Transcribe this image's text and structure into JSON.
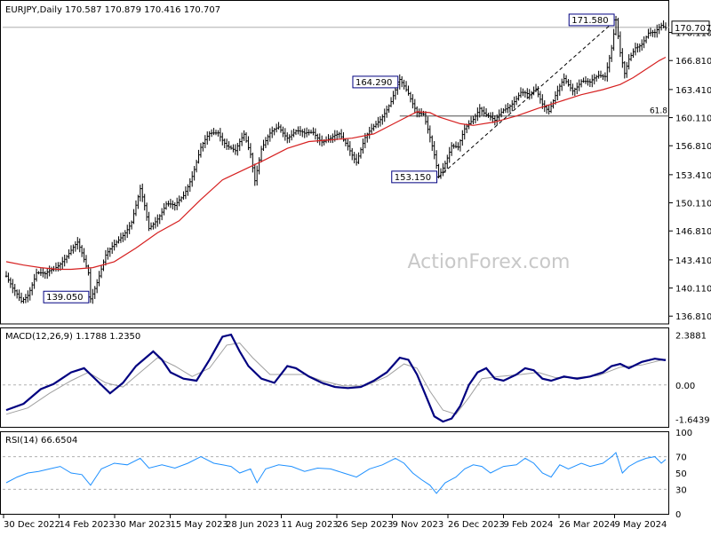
{
  "header": {
    "symbol": "EURJPY,Daily",
    "ohlc": "170.587 170.879 170.416 170.707"
  },
  "watermark": "ActionForex.com",
  "colors": {
    "candle": "#000000",
    "ma": "#d62020",
    "macd_line": "#000080",
    "signal_line": "#a0a0a0",
    "rsi_line": "#1e90ff",
    "fib_line": "#4d4d4d",
    "label_border": "#000080",
    "grid_dash": "#b0b0b0"
  },
  "chart_data": [
    {
      "type": "candlestick",
      "name": "price",
      "ylim": [
        136.0,
        173.5
      ],
      "y_ticks": [
        "170.707",
        "170.110",
        "166.810",
        "163.410",
        "160.110",
        "156.810",
        "153.410",
        "150.110",
        "146.810",
        "143.410",
        "140.110",
        "136.810"
      ],
      "last_price_label": "170.707",
      "x_ticks": [
        "30 Dec 2022",
        "14 Feb 2023",
        "30 Mar 2023",
        "15 May 2023",
        "28 Jun 2023",
        "11 Aug 2023",
        "26 Sep 2023",
        "9 Nov 2023",
        "26 Dec 2023",
        "9 Feb 2024",
        "26 Mar 2024",
        "9 May 2024"
      ],
      "price_path": [
        [
          0,
          141.5
        ],
        [
          3,
          139.8
        ],
        [
          7,
          138.5
        ],
        [
          10,
          139.5
        ],
        [
          14,
          142.0
        ],
        [
          18,
          141.5
        ],
        [
          22,
          142.3
        ],
        [
          26,
          143.5
        ],
        [
          30,
          144.5
        ],
        [
          33,
          145.2
        ],
        [
          35,
          144.0
        ],
        [
          38,
          142.0
        ],
        [
          39,
          139.05
        ],
        [
          42,
          141.0
        ],
        [
          46,
          143.8
        ],
        [
          50,
          145.0
        ],
        [
          54,
          146.5
        ],
        [
          58,
          148.0
        ],
        [
          62,
          151.5
        ],
        [
          64,
          149.5
        ],
        [
          66,
          147.0
        ],
        [
          70,
          148.5
        ],
        [
          74,
          150.0
        ],
        [
          78,
          149.5
        ],
        [
          82,
          151.0
        ],
        [
          86,
          153.5
        ],
        [
          90,
          156.5
        ],
        [
          94,
          158.0
        ],
        [
          98,
          158.5
        ],
        [
          102,
          157.0
        ],
        [
          106,
          156.0
        ],
        [
          110,
          158.0
        ],
        [
          113,
          156.0
        ],
        [
          115,
          153.0
        ],
        [
          118,
          156.5
        ],
        [
          122,
          158.0
        ],
        [
          126,
          159.0
        ],
        [
          130,
          158.0
        ],
        [
          134,
          158.5
        ],
        [
          138,
          158.0
        ],
        [
          142,
          158.5
        ],
        [
          146,
          157.5
        ],
        [
          150,
          157.5
        ],
        [
          154,
          158.0
        ],
        [
          158,
          157.0
        ],
        [
          162,
          155.0
        ],
        [
          166,
          157.5
        ],
        [
          170,
          159.0
        ],
        [
          174,
          160.5
        ],
        [
          178,
          162.0
        ],
        [
          182,
          164.29
        ],
        [
          186,
          163.0
        ],
        [
          190,
          161.0
        ],
        [
          193,
          160.5
        ],
        [
          196,
          157.5
        ],
        [
          198,
          155.5
        ],
        [
          200,
          153.15
        ],
        [
          203,
          155.0
        ],
        [
          206,
          157.0
        ],
        [
          209,
          156.5
        ],
        [
          212,
          158.5
        ],
        [
          216,
          160.0
        ],
        [
          219,
          161.5
        ],
        [
          222,
          160.5
        ],
        [
          226,
          159.5
        ],
        [
          230,
          161.0
        ],
        [
          234,
          162.0
        ],
        [
          238,
          163.0
        ],
        [
          242,
          162.5
        ],
        [
          245,
          163.5
        ],
        [
          248,
          162.0
        ],
        [
          251,
          161.0
        ],
        [
          254,
          162.5
        ],
        [
          258,
          164.5
        ],
        [
          262,
          163.5
        ],
        [
          266,
          164.5
        ],
        [
          270,
          164.0
        ],
        [
          274,
          165.0
        ],
        [
          277,
          165.2
        ],
        [
          280,
          168.5
        ],
        [
          282,
          171.58
        ],
        [
          284,
          167.5
        ],
        [
          286,
          165.0
        ],
        [
          288,
          166.8
        ],
        [
          291,
          168.5
        ],
        [
          294,
          169.0
        ],
        [
          297,
          170.0
        ],
        [
          300,
          169.8
        ],
        [
          303,
          170.8
        ],
        [
          305,
          170.707
        ]
      ],
      "ma_path": [
        [
          0,
          143.2
        ],
        [
          8,
          142.8
        ],
        [
          16,
          142.5
        ],
        [
          24,
          142.3
        ],
        [
          30,
          142.3
        ],
        [
          40,
          142.5
        ],
        [
          50,
          143.2
        ],
        [
          60,
          144.8
        ],
        [
          70,
          146.6
        ],
        [
          80,
          148.0
        ],
        [
          90,
          150.5
        ],
        [
          100,
          152.8
        ],
        [
          110,
          154.0
        ],
        [
          120,
          155.2
        ],
        [
          130,
          156.5
        ],
        [
          140,
          157.3
        ],
        [
          150,
          157.5
        ],
        [
          160,
          157.7
        ],
        [
          170,
          158.2
        ],
        [
          180,
          159.5
        ],
        [
          190,
          160.8
        ],
        [
          196,
          160.7
        ],
        [
          200,
          160.2
        ],
        [
          210,
          159.4
        ],
        [
          216,
          159.2
        ],
        [
          226,
          159.6
        ],
        [
          236,
          160.3
        ],
        [
          246,
          161.2
        ],
        [
          256,
          162.0
        ],
        [
          266,
          162.8
        ],
        [
          276,
          163.4
        ],
        [
          284,
          164.0
        ],
        [
          290,
          164.8
        ],
        [
          296,
          165.8
        ],
        [
          302,
          166.8
        ],
        [
          305,
          167.2
        ]
      ],
      "annotations": [
        {
          "label": "139.050",
          "value": 139.05,
          "bar": 39
        },
        {
          "label": "164.290",
          "value": 164.29,
          "bar": 182
        },
        {
          "label": "153.150",
          "value": 153.15,
          "bar": 200
        },
        {
          "label": "171.580",
          "value": 171.58,
          "bar": 282
        }
      ],
      "fibonacci": {
        "label": "61.8",
        "value": 160.3
      },
      "trend_line": {
        "from": [
          200,
          153.15
        ],
        "to": [
          282,
          171.58
        ]
      }
    },
    {
      "type": "line",
      "name": "MACD(12,26,9)",
      "title": "MACD(12,26,9) 1.1788 1.2350",
      "ylim": [
        -2.0,
        2.7
      ],
      "y_ticks": [
        "2.3881",
        "0.00",
        "-1.6439"
      ],
      "zero_line": 0.0,
      "macd_path": [
        [
          0,
          -1.2
        ],
        [
          8,
          -0.9
        ],
        [
          16,
          -0.2
        ],
        [
          22,
          0.05
        ],
        [
          30,
          0.6
        ],
        [
          36,
          0.8
        ],
        [
          42,
          0.2
        ],
        [
          48,
          -0.4
        ],
        [
          54,
          0.1
        ],
        [
          60,
          0.9
        ],
        [
          68,
          1.6
        ],
        [
          72,
          1.2
        ],
        [
          76,
          0.6
        ],
        [
          82,
          0.3
        ],
        [
          88,
          0.2
        ],
        [
          94,
          1.2
        ],
        [
          100,
          2.3
        ],
        [
          104,
          2.4
        ],
        [
          108,
          1.6
        ],
        [
          112,
          0.9
        ],
        [
          118,
          0.3
        ],
        [
          124,
          0.1
        ],
        [
          130,
          0.9
        ],
        [
          134,
          0.8
        ],
        [
          140,
          0.4
        ],
        [
          146,
          0.1
        ],
        [
          152,
          -0.1
        ],
        [
          158,
          -0.15
        ],
        [
          164,
          -0.1
        ],
        [
          170,
          0.2
        ],
        [
          176,
          0.6
        ],
        [
          182,
          1.3
        ],
        [
          186,
          1.2
        ],
        [
          190,
          0.5
        ],
        [
          194,
          -0.5
        ],
        [
          198,
          -1.5
        ],
        [
          202,
          -1.75
        ],
        [
          206,
          -1.6
        ],
        [
          210,
          -1.0
        ],
        [
          214,
          0.0
        ],
        [
          218,
          0.6
        ],
        [
          222,
          0.8
        ],
        [
          226,
          0.3
        ],
        [
          230,
          0.2
        ],
        [
          236,
          0.5
        ],
        [
          240,
          0.8
        ],
        [
          244,
          0.7
        ],
        [
          248,
          0.3
        ],
        [
          252,
          0.2
        ],
        [
          258,
          0.4
        ],
        [
          264,
          0.3
        ],
        [
          270,
          0.4
        ],
        [
          276,
          0.6
        ],
        [
          280,
          0.9
        ],
        [
          284,
          1.0
        ],
        [
          288,
          0.8
        ],
        [
          294,
          1.1
        ],
        [
          300,
          1.25
        ],
        [
          305,
          1.18
        ]
      ],
      "signal_path": [
        [
          0,
          -1.4
        ],
        [
          10,
          -1.1
        ],
        [
          20,
          -0.4
        ],
        [
          30,
          0.2
        ],
        [
          38,
          0.6
        ],
        [
          46,
          0.1
        ],
        [
          54,
          -0.1
        ],
        [
          62,
          0.6
        ],
        [
          70,
          1.3
        ],
        [
          78,
          0.9
        ],
        [
          86,
          0.4
        ],
        [
          94,
          0.8
        ],
        [
          102,
          1.9
        ],
        [
          108,
          2.0
        ],
        [
          114,
          1.3
        ],
        [
          122,
          0.5
        ],
        [
          130,
          0.5
        ],
        [
          138,
          0.5
        ],
        [
          146,
          0.2
        ],
        [
          156,
          -0.05
        ],
        [
          166,
          -0.05
        ],
        [
          176,
          0.4
        ],
        [
          184,
          1.0
        ],
        [
          190,
          0.8
        ],
        [
          196,
          -0.3
        ],
        [
          202,
          -1.2
        ],
        [
          208,
          -1.4
        ],
        [
          214,
          -0.6
        ],
        [
          220,
          0.3
        ],
        [
          228,
          0.4
        ],
        [
          238,
          0.5
        ],
        [
          246,
          0.6
        ],
        [
          254,
          0.35
        ],
        [
          264,
          0.35
        ],
        [
          274,
          0.45
        ],
        [
          284,
          0.85
        ],
        [
          294,
          0.95
        ],
        [
          305,
          1.235
        ]
      ]
    },
    {
      "type": "line",
      "name": "RSI(14)",
      "title": "RSI(14) 66.6504",
      "ylim": [
        0,
        100
      ],
      "y_ticks": [
        "100",
        "70",
        "50",
        "30",
        "0"
      ],
      "levels": [
        70,
        30
      ],
      "rsi_path": [
        [
          0,
          38
        ],
        [
          5,
          45
        ],
        [
          10,
          50
        ],
        [
          15,
          52
        ],
        [
          20,
          55
        ],
        [
          25,
          58
        ],
        [
          30,
          50
        ],
        [
          35,
          48
        ],
        [
          39,
          35
        ],
        [
          44,
          55
        ],
        [
          50,
          62
        ],
        [
          56,
          60
        ],
        [
          62,
          68
        ],
        [
          66,
          56
        ],
        [
          72,
          60
        ],
        [
          78,
          56
        ],
        [
          84,
          62
        ],
        [
          90,
          70
        ],
        [
          96,
          62
        ],
        [
          100,
          60
        ],
        [
          104,
          58
        ],
        [
          108,
          50
        ],
        [
          113,
          55
        ],
        [
          116,
          38
        ],
        [
          120,
          55
        ],
        [
          126,
          60
        ],
        [
          132,
          58
        ],
        [
          138,
          52
        ],
        [
          144,
          56
        ],
        [
          150,
          55
        ],
        [
          156,
          50
        ],
        [
          162,
          45
        ],
        [
          168,
          55
        ],
        [
          174,
          60
        ],
        [
          180,
          68
        ],
        [
          184,
          62
        ],
        [
          188,
          50
        ],
        [
          192,
          42
        ],
        [
          196,
          35
        ],
        [
          199,
          25
        ],
        [
          203,
          38
        ],
        [
          208,
          45
        ],
        [
          212,
          55
        ],
        [
          216,
          60
        ],
        [
          220,
          58
        ],
        [
          224,
          50
        ],
        [
          230,
          58
        ],
        [
          236,
          60
        ],
        [
          240,
          68
        ],
        [
          244,
          62
        ],
        [
          248,
          50
        ],
        [
          252,
          45
        ],
        [
          256,
          60
        ],
        [
          260,
          55
        ],
        [
          266,
          62
        ],
        [
          270,
          58
        ],
        [
          276,
          62
        ],
        [
          280,
          70
        ],
        [
          282,
          75
        ],
        [
          285,
          50
        ],
        [
          288,
          58
        ],
        [
          292,
          64
        ],
        [
          296,
          68
        ],
        [
          300,
          70
        ],
        [
          303,
          62
        ],
        [
          305,
          66.65
        ]
      ]
    }
  ]
}
